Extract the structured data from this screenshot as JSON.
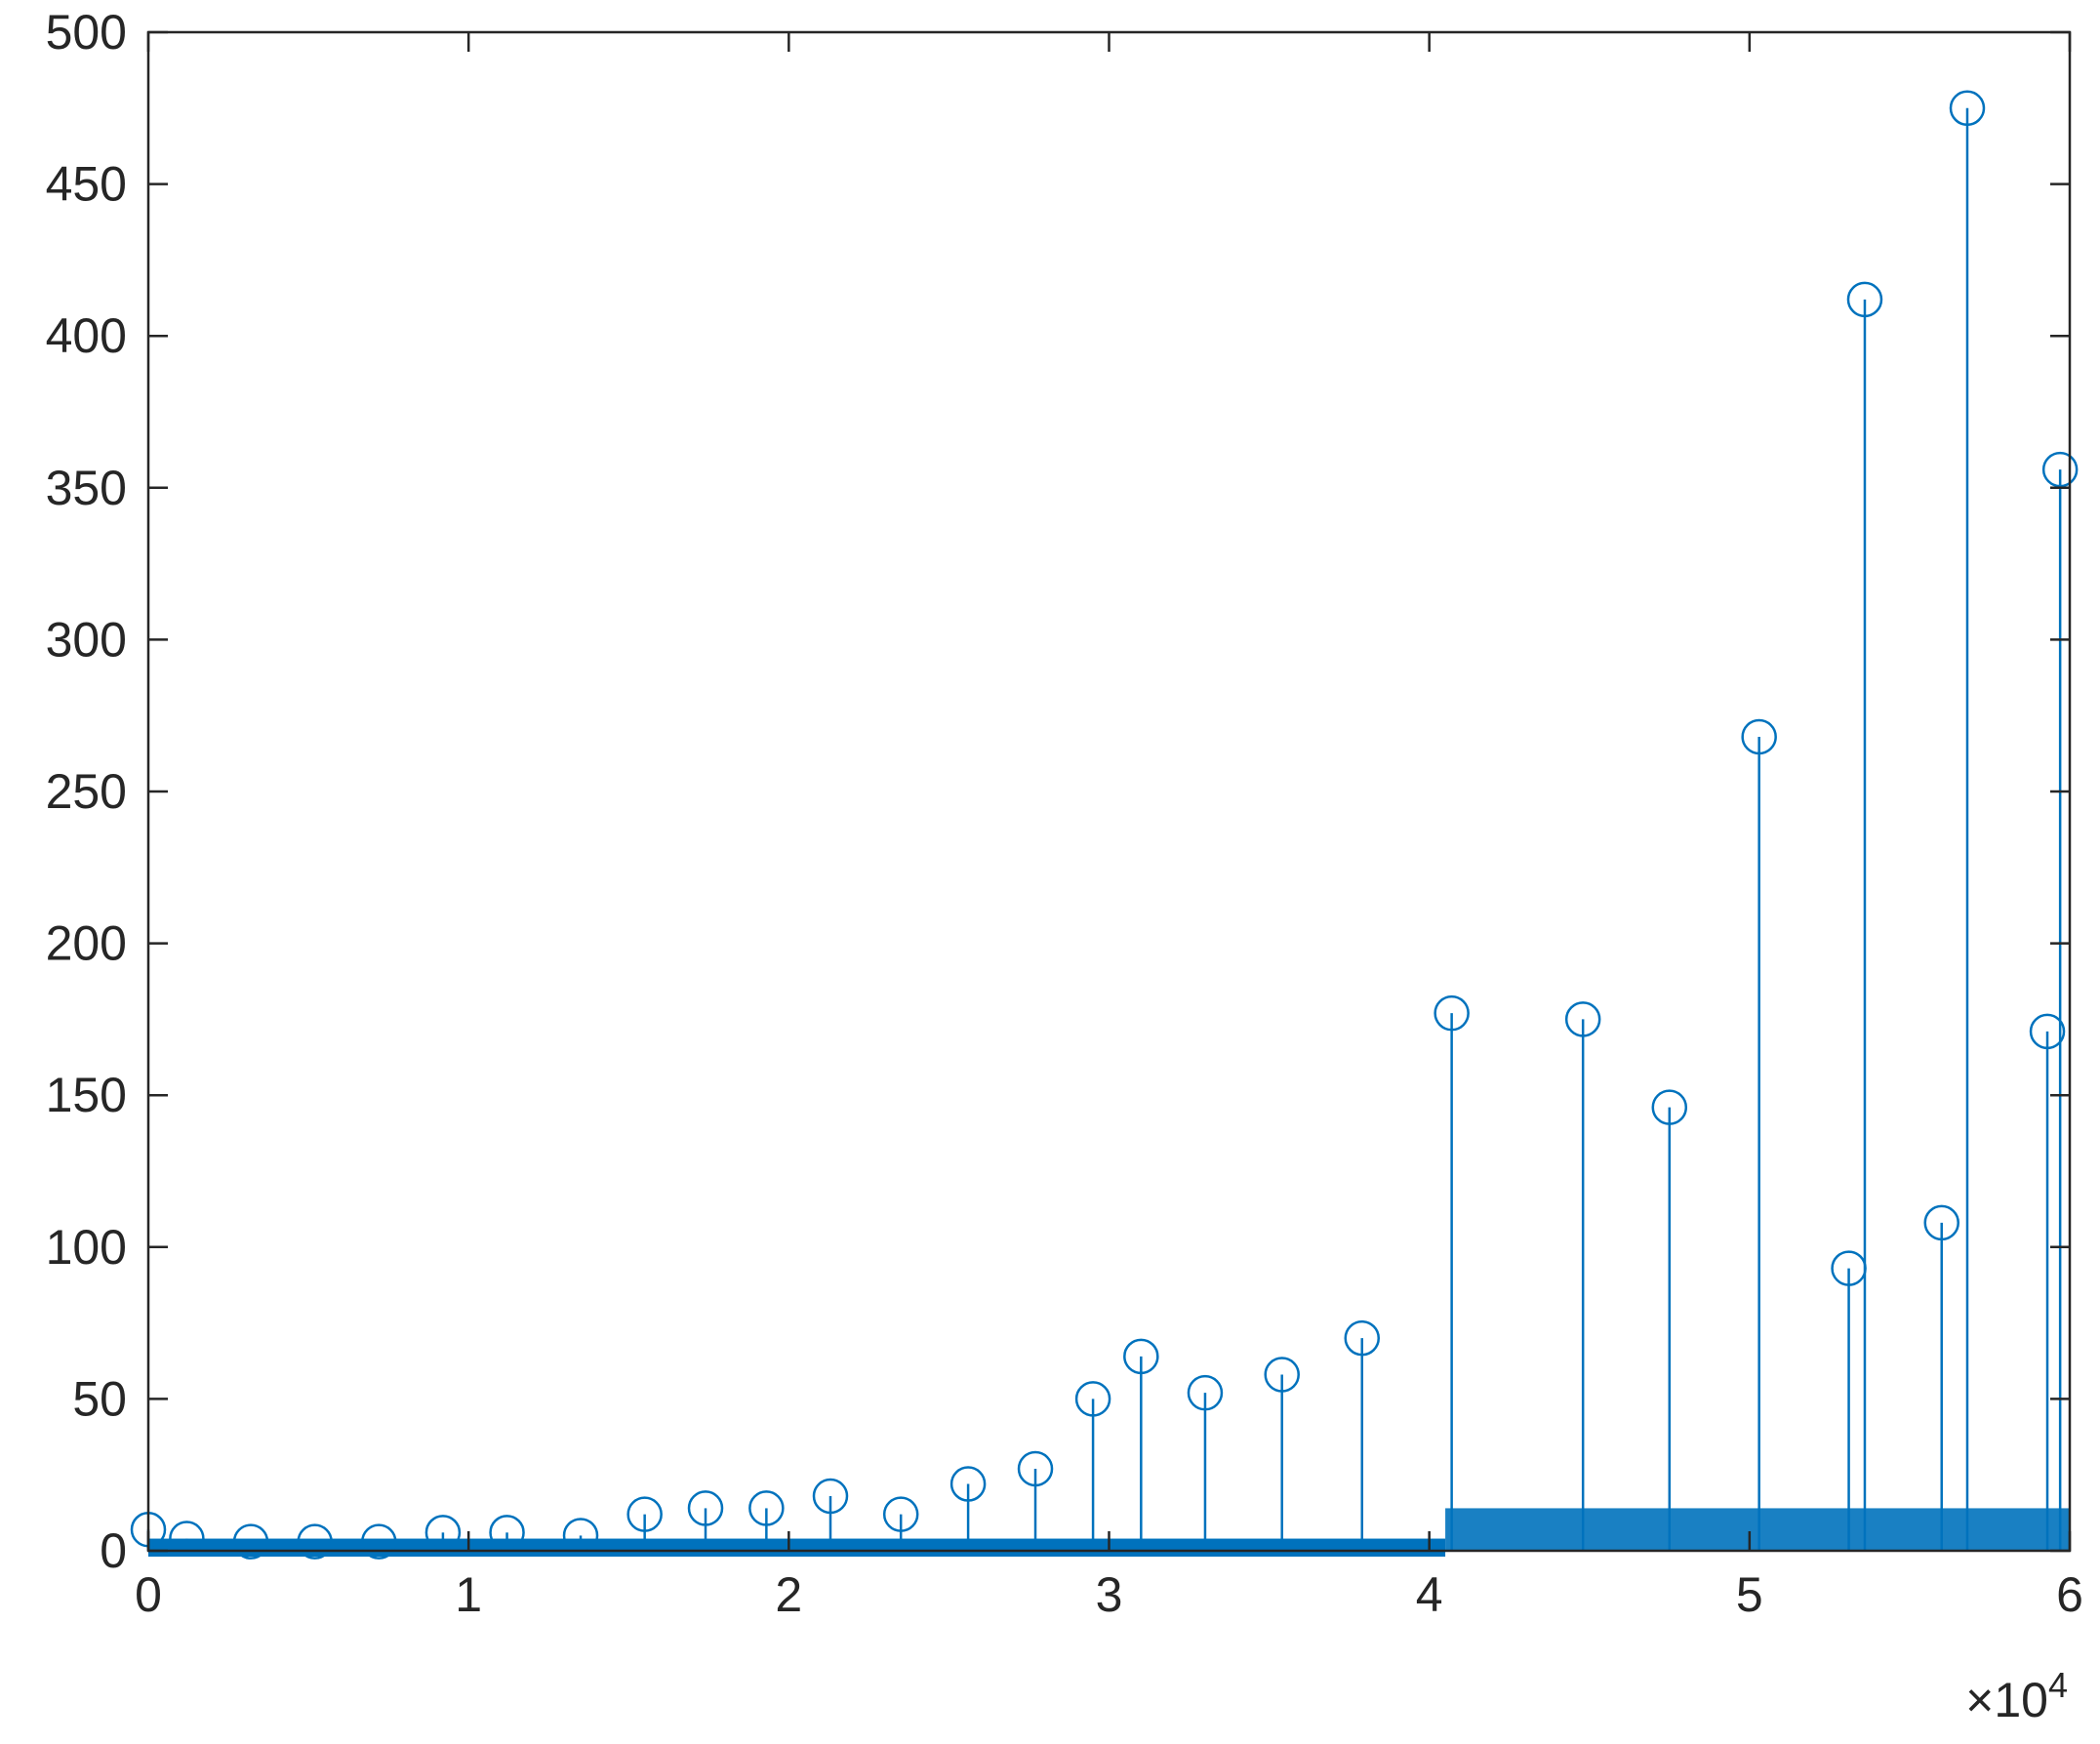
{
  "chart_data": {
    "type": "scatter",
    "subtype": "stem",
    "title": "",
    "xlabel": "",
    "ylabel": "",
    "xlim": [
      0,
      60000
    ],
    "ylim": [
      0,
      500
    ],
    "x_ticks": [
      0,
      10000,
      20000,
      30000,
      40000,
      50000,
      60000
    ],
    "x_tick_labels": [
      "0",
      "1",
      "2",
      "3",
      "4",
      "5",
      "6"
    ],
    "x_exponent_label": "×10",
    "x_exponent_power": "4",
    "y_ticks": [
      0,
      50,
      100,
      150,
      200,
      250,
      300,
      350,
      400,
      450,
      500
    ],
    "y_tick_labels": [
      "0",
      "50",
      "100",
      "150",
      "200",
      "250",
      "300",
      "350",
      "400",
      "450",
      "500"
    ],
    "grid": false,
    "marker": "circle",
    "color": "#0072BD",
    "series": [
      {
        "x": [
          0,
          1200,
          3200,
          5200,
          7200,
          9200,
          11200,
          13500,
          15500,
          17400,
          19300,
          21300,
          23500,
          25600,
          27700,
          29500,
          31000,
          33000,
          35400,
          37900,
          40700,
          44800,
          47500,
          50300,
          53100,
          53600,
          56000,
          56800,
          59300,
          59700
        ],
        "y": [
          7,
          4,
          3,
          3,
          3,
          6,
          6,
          5,
          12,
          14,
          14,
          18,
          12,
          22,
          27,
          50,
          64,
          52,
          58,
          70,
          177,
          175,
          146,
          268,
          93,
          412,
          108,
          475,
          171,
          356
        ]
      }
    ]
  }
}
